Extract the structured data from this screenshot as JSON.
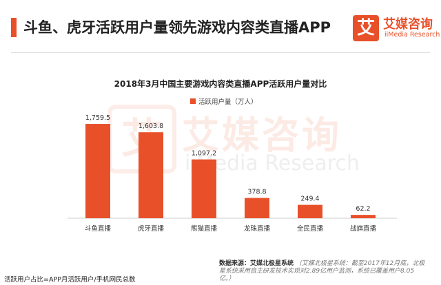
{
  "header": {
    "headline": "斗鱼、虎牙活跃用户量领先游戏内容类直播APP",
    "logo_mark": "艾",
    "logo_cn": "艾媒咨询",
    "logo_en": "iiMedia Research"
  },
  "watermark": {
    "mark": "艾",
    "cn": "艾媒咨询",
    "en": "iiMedia Research"
  },
  "colors": {
    "accent": "#e8502a",
    "bar": "#e8502a"
  },
  "chart_data": {
    "type": "bar",
    "title": "2018年3月中国主要游戏内容类直播APP活跃用户量对比",
    "legend": [
      "活跃用户量（万人）"
    ],
    "legend_placement": "top-center",
    "categories": [
      "斗鱼直播",
      "虎牙直播",
      "熊猫直播",
      "龙珠直播",
      "全民直播",
      "战旗直播"
    ],
    "series": [
      {
        "name": "活跃用户量（万人）",
        "values": [
          1759.5,
          1603.8,
          1097.2,
          378.8,
          249.4,
          62.2
        ]
      }
    ],
    "value_labels": [
      "1,759.5",
      "1,603.8",
      "1,097.2",
      "378.8",
      "249.4",
      "62.2"
    ],
    "ylim": [
      0,
      1760
    ],
    "grid": false,
    "xlabel": "",
    "ylabel": ""
  },
  "source": {
    "label": "数据来源：艾媒北极星系统",
    "note": "（艾媒北极星系统：截至2017年12月底，北极星系统采用自主研发技术实现对2.89亿用户监测，系统已覆盖用户8.05亿。）"
  },
  "footnote": "活跃用户占比=APP月活跃用户/手机网民总数"
}
